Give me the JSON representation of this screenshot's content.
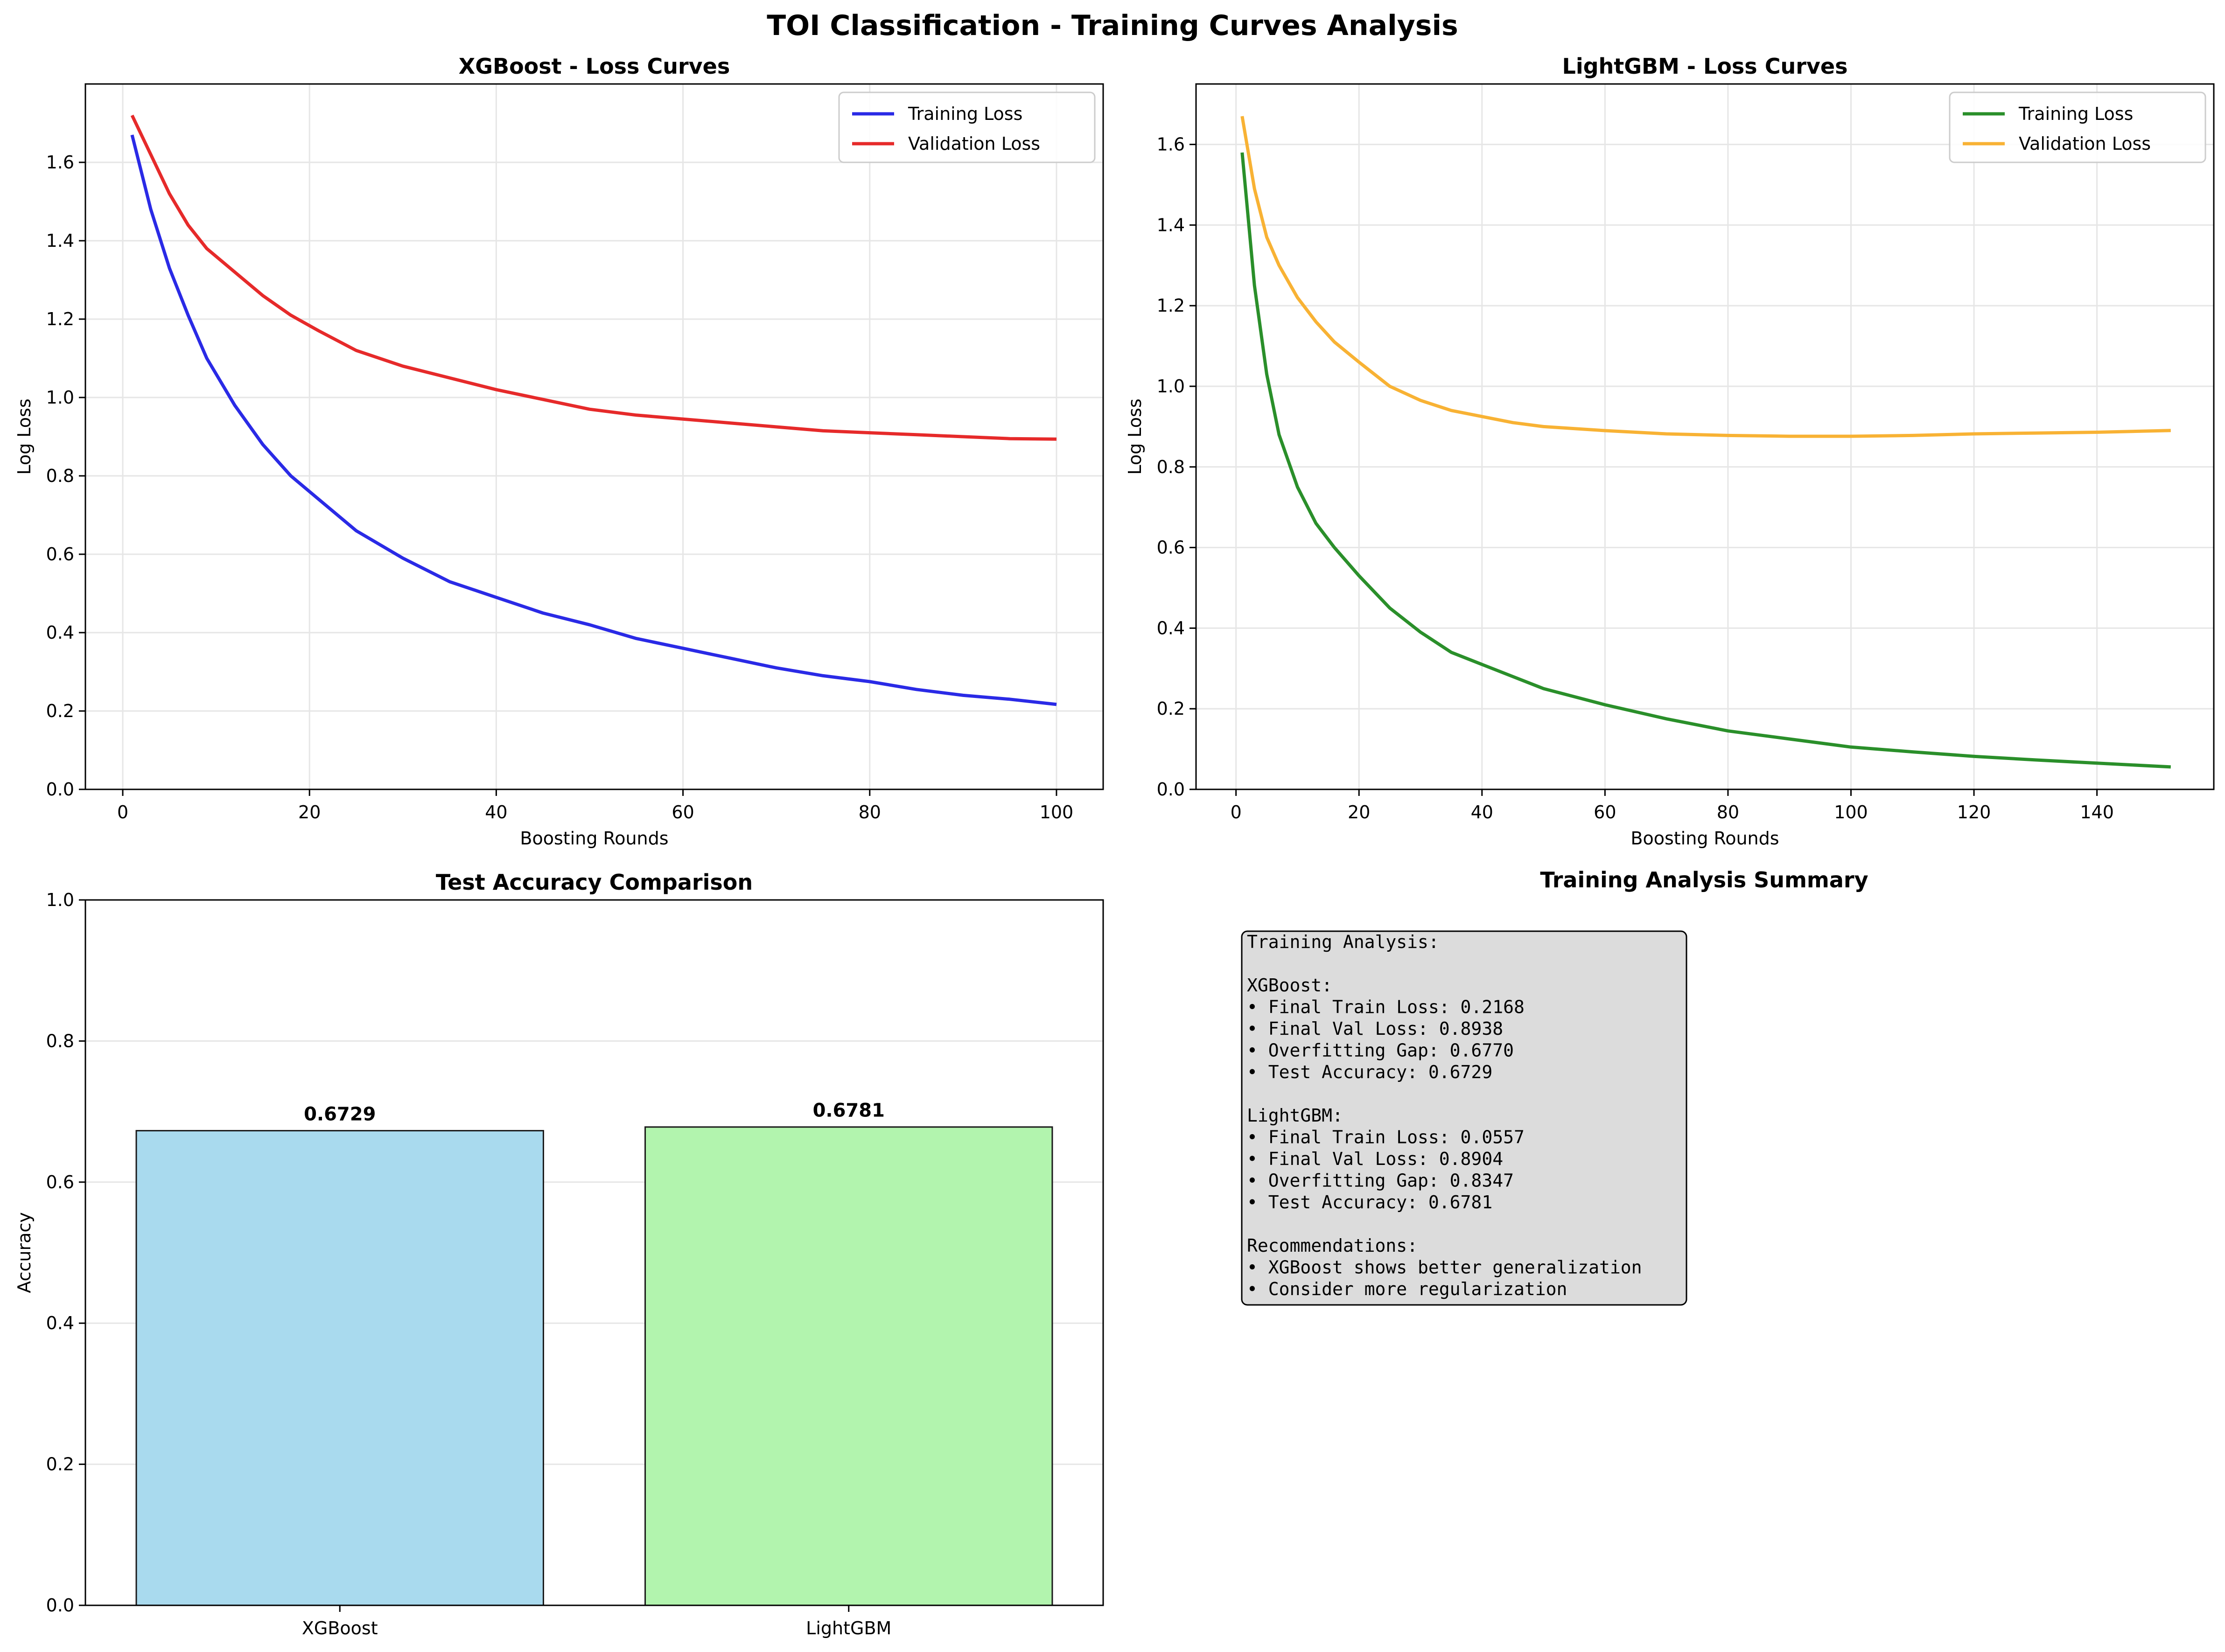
{
  "suptitle": "TOI Classification - Training Curves Analysis",
  "colors": {
    "xgb_train": "#2a2ae6",
    "xgb_val": "#e62a2a",
    "lgb_train": "#2a8f2a",
    "lgb_val": "#f8b234",
    "bar_xgb": "#a9daee",
    "bar_lgb": "#b2f4ae",
    "summary_bg": "#dcdcdc"
  },
  "chart_data": [
    {
      "type": "line",
      "title": "XGBoost - Loss Curves",
      "xlabel": "Boosting Rounds",
      "ylabel": "Log Loss",
      "xlim": [
        -4,
        105
      ],
      "ylim": [
        0,
        1.8
      ],
      "xticks": [
        0,
        20,
        40,
        60,
        80,
        100
      ],
      "yticks": [
        0.0,
        0.2,
        0.4,
        0.6,
        0.8,
        1.0,
        1.2,
        1.4,
        1.6
      ],
      "grid": true,
      "legend": "upper-right",
      "series": [
        {
          "name": "Training Loss",
          "x": [
            1,
            3,
            5,
            7,
            9,
            12,
            15,
            18,
            21,
            25,
            30,
            35,
            40,
            45,
            50,
            55,
            60,
            65,
            70,
            75,
            80,
            85,
            90,
            95,
            100
          ],
          "y": [
            1.67,
            1.48,
            1.33,
            1.21,
            1.1,
            0.98,
            0.88,
            0.8,
            0.74,
            0.66,
            0.59,
            0.53,
            0.49,
            0.45,
            0.42,
            0.385,
            0.36,
            0.335,
            0.31,
            0.29,
            0.275,
            0.255,
            0.24,
            0.23,
            0.2168
          ]
        },
        {
          "name": "Validation Loss",
          "x": [
            1,
            3,
            5,
            7,
            9,
            12,
            15,
            18,
            21,
            25,
            30,
            35,
            40,
            45,
            50,
            55,
            60,
            65,
            70,
            75,
            80,
            85,
            90,
            95,
            100
          ],
          "y": [
            1.72,
            1.62,
            1.52,
            1.44,
            1.38,
            1.32,
            1.26,
            1.21,
            1.17,
            1.12,
            1.08,
            1.05,
            1.02,
            0.995,
            0.97,
            0.955,
            0.945,
            0.935,
            0.925,
            0.915,
            0.91,
            0.905,
            0.9,
            0.895,
            0.8938
          ]
        }
      ]
    },
    {
      "type": "line",
      "title": "LightGBM - Loss Curves",
      "xlabel": "Boosting Rounds",
      "ylabel": "Log Loss",
      "xlim": [
        -6.5,
        159
      ],
      "ylim": [
        0,
        1.75
      ],
      "xticks": [
        0,
        20,
        40,
        60,
        80,
        100,
        120,
        140
      ],
      "yticks": [
        0.0,
        0.2,
        0.4,
        0.6,
        0.8,
        1.0,
        1.2,
        1.4,
        1.6
      ],
      "grid": true,
      "legend": "upper-right",
      "series": [
        {
          "name": "Training Loss",
          "x": [
            1,
            3,
            5,
            7,
            10,
            13,
            16,
            20,
            25,
            30,
            35,
            40,
            45,
            50,
            60,
            70,
            80,
            90,
            100,
            110,
            120,
            130,
            140,
            152
          ],
          "y": [
            1.58,
            1.25,
            1.03,
            0.88,
            0.75,
            0.66,
            0.6,
            0.53,
            0.45,
            0.39,
            0.34,
            0.31,
            0.28,
            0.25,
            0.21,
            0.175,
            0.145,
            0.125,
            0.105,
            0.093,
            0.082,
            0.073,
            0.065,
            0.0557
          ]
        },
        {
          "name": "Validation Loss",
          "x": [
            1,
            3,
            5,
            7,
            10,
            13,
            16,
            20,
            25,
            30,
            35,
            40,
            45,
            50,
            60,
            70,
            80,
            90,
            100,
            110,
            120,
            130,
            140,
            152
          ],
          "y": [
            1.67,
            1.49,
            1.37,
            1.3,
            1.22,
            1.16,
            1.11,
            1.06,
            1.0,
            0.965,
            0.94,
            0.925,
            0.91,
            0.9,
            0.89,
            0.882,
            0.878,
            0.876,
            0.876,
            0.878,
            0.882,
            0.884,
            0.886,
            0.8904
          ]
        }
      ]
    },
    {
      "type": "bar",
      "title": "Test Accuracy Comparison",
      "ylabel": "Accuracy",
      "ylim": [
        0,
        1.0
      ],
      "yticks": [
        0.0,
        0.2,
        0.4,
        0.6,
        0.8,
        1.0
      ],
      "grid": true,
      "categories": [
        "XGBoost",
        "LightGBM"
      ],
      "values": [
        0.6729,
        0.6781
      ],
      "value_labels": [
        "0.6729",
        "0.6781"
      ]
    }
  ],
  "summary": {
    "title": "Training Analysis Summary",
    "lines": [
      "Training Analysis:",
      "",
      "XGBoost:",
      "• Final Train Loss: 0.2168",
      "• Final Val Loss: 0.8938",
      "• Overfitting Gap: 0.6770",
      "• Test Accuracy: 0.6729",
      "",
      "LightGBM:",
      "• Final Train Loss: 0.0557",
      "• Final Val Loss: 0.8904",
      "• Overfitting Gap: 0.8347",
      "• Test Accuracy: 0.6781",
      "",
      "Recommendations:",
      "• XGBoost shows better generalization",
      "• Consider more regularization"
    ]
  }
}
